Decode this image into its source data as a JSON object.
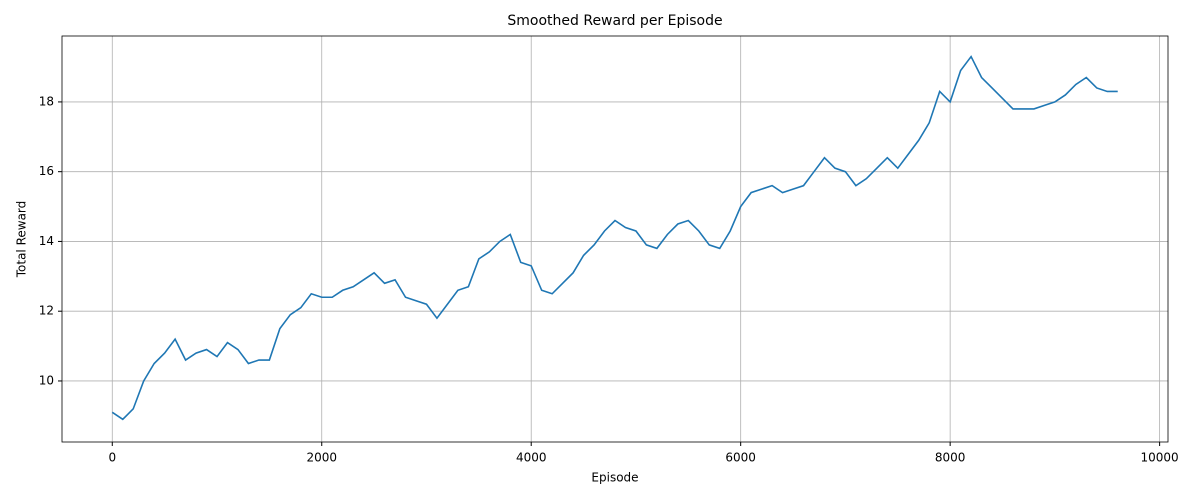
{
  "chart_data": {
    "type": "line",
    "title": "Smoothed Reward per Episode",
    "xlabel": "Episode",
    "ylabel": "Total Reward",
    "x": [
      0,
      100,
      200,
      300,
      400,
      500,
      600,
      700,
      800,
      900,
      1000,
      1100,
      1200,
      1300,
      1400,
      1500,
      1600,
      1700,
      1800,
      1900,
      2000,
      2100,
      2200,
      2300,
      2400,
      2500,
      2600,
      2700,
      2800,
      2900,
      3000,
      3100,
      3200,
      3300,
      3400,
      3500,
      3600,
      3700,
      3800,
      3900,
      4000,
      4100,
      4200,
      4300,
      4400,
      4500,
      4600,
      4700,
      4800,
      4900,
      5000,
      5100,
      5200,
      5300,
      5400,
      5500,
      5600,
      5700,
      5800,
      5900,
      6000,
      6100,
      6200,
      6300,
      6400,
      6500,
      6600,
      6700,
      6800,
      6900,
      7000,
      7100,
      7200,
      7300,
      7400,
      7500,
      7600,
      7700,
      7800,
      7900,
      8000,
      8100,
      8200,
      8300,
      8400,
      8500,
      8600,
      8700,
      8800,
      8900,
      9000,
      9100,
      9200,
      9300,
      9400,
      9500,
      9600
    ],
    "series": [
      {
        "color": "#1f77b4",
        "values": [
          9.1,
          8.9,
          9.2,
          10.0,
          10.5,
          10.8,
          11.2,
          10.6,
          10.8,
          10.9,
          10.7,
          11.1,
          10.9,
          10.5,
          10.6,
          10.6,
          11.5,
          11.9,
          12.1,
          12.5,
          12.4,
          12.4,
          12.6,
          12.7,
          12.9,
          13.1,
          12.8,
          12.9,
          12.4,
          12.3,
          12.2,
          11.8,
          12.2,
          12.6,
          12.7,
          13.5,
          13.7,
          14.0,
          14.2,
          13.4,
          13.3,
          12.6,
          12.5,
          12.8,
          13.1,
          13.6,
          13.9,
          14.3,
          14.6,
          14.4,
          14.3,
          13.9,
          13.8,
          14.2,
          14.5,
          14.6,
          14.3,
          13.9,
          13.8,
          14.3,
          15.0,
          15.4,
          15.5,
          15.6,
          15.4,
          15.5,
          15.6,
          16.0,
          16.4,
          16.1,
          16.0,
          15.6,
          15.8,
          16.1,
          16.4,
          16.1,
          16.5,
          16.9,
          17.4,
          18.3,
          18.0,
          18.9,
          19.3,
          18.7,
          18.4,
          18.1,
          17.8,
          17.8,
          17.8,
          17.9,
          18.0,
          18.2,
          18.5,
          18.7,
          18.4,
          18.3,
          18.3
        ]
      }
    ],
    "xlim": [
      -480,
      10080
    ],
    "xticks": [
      0,
      2000,
      4000,
      6000,
      8000,
      10000
    ],
    "ylim": [
      8.25,
      19.89
    ],
    "yticks": [
      10,
      12,
      14,
      16,
      18
    ],
    "grid": true
  }
}
